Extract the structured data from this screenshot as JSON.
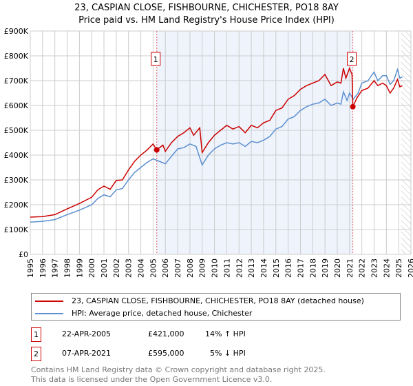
{
  "chart_data": {
    "type": "line",
    "title": "23, CASPIAN CLOSE, FISHBOURNE, CHICHESTER, PO18 8AY",
    "subtitle": "Price paid vs. HM Land Registry's House Price Index (HPI)",
    "xlim": [
      1995,
      2026
    ],
    "ylim": [
      0,
      900000
    ],
    "x_ticks": [
      "1995",
      "1996",
      "1997",
      "1998",
      "1999",
      "2000",
      "2001",
      "2002",
      "2003",
      "2004",
      "2005",
      "2006",
      "2007",
      "2008",
      "2009",
      "2010",
      "2011",
      "2012",
      "2013",
      "2014",
      "2015",
      "2016",
      "2017",
      "2018",
      "2019",
      "2020",
      "2021",
      "2022",
      "2023",
      "2024",
      "2025",
      "2026"
    ],
    "y_ticks": [
      {
        "v": 0,
        "l": "£0"
      },
      {
        "v": 100000,
        "l": "£100K"
      },
      {
        "v": 200000,
        "l": "£200K"
      },
      {
        "v": 300000,
        "l": "£300K"
      },
      {
        "v": 400000,
        "l": "£400K"
      },
      {
        "v": 500000,
        "l": "£500K"
      },
      {
        "v": 600000,
        "l": "£600K"
      },
      {
        "v": 700000,
        "l": "£700K"
      },
      {
        "v": 800000,
        "l": "£800K"
      },
      {
        "v": 900000,
        "l": "£900K"
      }
    ],
    "grid": true,
    "shaded_range": [
      2005.3,
      2021.27
    ],
    "forecast_hatch_from": 2025.2,
    "series": [
      {
        "name": "23, CASPIAN CLOSE, FISHBOURNE, CHICHESTER, PO18 8AY (detached house)",
        "color": "#cc0000",
        "x": [
          1995,
          1996,
          1997,
          1998,
          1999,
          2000,
          2000.5,
          2001,
          2001.5,
          2002,
          2002.5,
          2003,
          2003.5,
          2004,
          2004.5,
          2005,
          2005.3,
          2005.8,
          2006,
          2006.5,
          2007,
          2007.5,
          2008,
          2008.3,
          2008.8,
          2009,
          2009.5,
          2010,
          2010.5,
          2011,
          2011.5,
          2012,
          2012.5,
          2013,
          2013.5,
          2014,
          2014.5,
          2015,
          2015.5,
          2016,
          2016.5,
          2017,
          2017.5,
          2018,
          2018.5,
          2019,
          2019.5,
          2020,
          2020.3,
          2020.5,
          2020.7,
          2021,
          2021.2,
          2021.27,
          2021.6,
          2022,
          2022.5,
          2023,
          2023.3,
          2023.7,
          2024,
          2024.3,
          2024.6,
          2024.9,
          2025.1,
          2025.3
        ],
        "y": [
          150,
          152,
          160,
          183,
          205,
          230,
          260,
          275,
          262,
          298,
          300,
          340,
          375,
          400,
          420,
          445,
          421,
          440,
          415,
          450,
          475,
          490,
          510,
          480,
          510,
          410,
          450,
          480,
          500,
          520,
          505,
          515,
          490,
          520,
          510,
          530,
          540,
          580,
          590,
          625,
          640,
          665,
          680,
          690,
          700,
          725,
          680,
          695,
          690,
          750,
          710,
          750,
          725,
          595,
          630,
          660,
          670,
          700,
          680,
          690,
          680,
          650,
          670,
          705,
          675,
          680
        ]
      },
      {
        "name": "HPI: Average price, detached house, Chichester",
        "color": "#5b8fd0",
        "x": [
          1995,
          1996,
          1997,
          1998,
          1999,
          2000,
          2000.5,
          2001,
          2001.5,
          2002,
          2002.5,
          2003,
          2003.5,
          2004,
          2004.5,
          2005,
          2005.5,
          2006,
          2006.5,
          2007,
          2007.5,
          2008,
          2008.5,
          2009,
          2009.5,
          2010,
          2010.5,
          2011,
          2011.5,
          2012,
          2012.5,
          2013,
          2013.5,
          2014,
          2014.5,
          2015,
          2015.5,
          2016,
          2016.5,
          2017,
          2017.5,
          2018,
          2018.5,
          2019,
          2019.5,
          2020,
          2020.3,
          2020.5,
          2020.8,
          2021,
          2021.3,
          2021.7,
          2022,
          2022.5,
          2023,
          2023.3,
          2023.7,
          2024,
          2024.3,
          2024.6,
          2024.9,
          2025.1,
          2025.3
        ],
        "y": [
          130,
          133,
          140,
          160,
          178,
          200,
          225,
          240,
          232,
          260,
          265,
          300,
          330,
          350,
          370,
          385,
          375,
          365,
          395,
          425,
          430,
          445,
          435,
          360,
          400,
          425,
          440,
          450,
          445,
          450,
          435,
          455,
          450,
          460,
          475,
          505,
          515,
          545,
          555,
          580,
          595,
          605,
          610,
          625,
          600,
          610,
          605,
          655,
          620,
          650,
          625,
          650,
          690,
          700,
          735,
          700,
          720,
          720,
          685,
          700,
          745,
          710,
          715
        ]
      }
    ],
    "sales": [
      {
        "n": "1",
        "x": 2005.3,
        "y": 421
      },
      {
        "n": "2",
        "x": 2021.27,
        "y": 595
      }
    ]
  },
  "legend": {
    "red": "23, CASPIAN CLOSE, FISHBOURNE, CHICHESTER, PO18 8AY (detached house)",
    "blue": "HPI: Average price, detached house, Chichester"
  },
  "transactions": [
    {
      "n": "1",
      "date": "22-APR-2005",
      "price": "£421,000",
      "hpi": "14% ↑ HPI"
    },
    {
      "n": "2",
      "date": "07-APR-2021",
      "price": "£595,000",
      "hpi": "5% ↓ HPI"
    }
  ],
  "footer": [
    "Contains HM Land Registry data © Crown copyright and database right 2025.",
    "This data is licensed under the Open Government Licence v3.0."
  ]
}
